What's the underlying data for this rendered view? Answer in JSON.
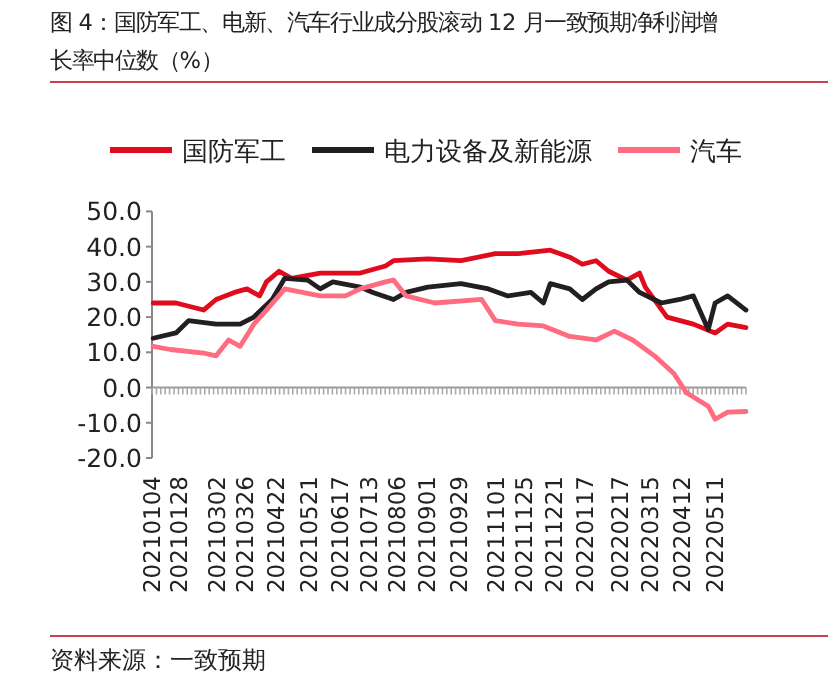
{
  "chart_data": {
    "type": "line",
    "title": "图 4：国防军工、电新、汽车行业成分股滚动 12 月一致预期净利润增长率中位数（%）",
    "annotations": [
      "资料来源：一致预期"
    ],
    "legend": "top",
    "marker": "none",
    "line_style": "solid",
    "xlim": [
      "2021-01-04",
      "2022-06-07"
    ],
    "xticks": [
      {
        "value": "2021-01-04",
        "label": "20210104"
      },
      {
        "value": "2021-01-28",
        "label": "20210128"
      },
      {
        "value": "2021-03-02",
        "label": "20210302"
      },
      {
        "value": "2021-03-26",
        "label": "20210326"
      },
      {
        "value": "2021-04-22",
        "label": "20210422"
      },
      {
        "value": "2021-05-21",
        "label": "20210521"
      },
      {
        "value": "2021-06-17",
        "label": "20210617"
      },
      {
        "value": "2021-07-13",
        "label": "20210713"
      },
      {
        "value": "2021-08-06",
        "label": "20210806"
      },
      {
        "value": "2021-09-01",
        "label": "20210901"
      },
      {
        "value": "2021-09-29",
        "label": "20210929"
      },
      {
        "value": "2021-11-01",
        "label": "20211101"
      },
      {
        "value": "2021-11-25",
        "label": "20211125"
      },
      {
        "value": "2021-12-21",
        "label": "20211221"
      },
      {
        "value": "2022-01-17",
        "label": "20220117"
      },
      {
        "value": "2022-02-17",
        "label": "20220217"
      },
      {
        "value": "2022-03-15",
        "label": "20220315"
      },
      {
        "value": "2022-04-12",
        "label": "20220412"
      },
      {
        "value": "2022-05-11",
        "label": "20220511"
      }
    ],
    "ylim": [
      -20,
      50
    ],
    "yticks": [
      {
        "value": -20,
        "label": "-20.0"
      },
      {
        "value": -10,
        "label": "-10.0"
      },
      {
        "value": 0,
        "label": "0.0"
      },
      {
        "value": 10,
        "label": "10.0"
      },
      {
        "value": 20,
        "label": "20.0"
      },
      {
        "value": 30,
        "label": "30.0"
      },
      {
        "value": 40,
        "label": "40.0"
      },
      {
        "value": 50,
        "label": "50.0"
      }
    ],
    "series": [
      {
        "name": "国防军工",
        "color": "#e00b1c",
        "x": [
          "2021-01-05",
          "2021-01-25",
          "2021-02-18",
          "2021-03-01",
          "2021-03-17",
          "2021-03-28",
          "2021-04-08",
          "2021-04-14",
          "2021-04-25",
          "2021-05-06",
          "2021-05-31",
          "2021-07-05",
          "2021-07-27",
          "2021-08-03",
          "2021-09-02",
          "2021-10-01",
          "2021-10-31",
          "2021-11-20",
          "2021-12-18",
          "2022-01-04",
          "2022-01-15",
          "2022-01-27",
          "2022-02-07",
          "2022-02-23",
          "2022-03-06",
          "2022-03-11",
          "2022-03-30",
          "2022-04-22",
          "2022-05-11",
          "2022-05-22",
          "2022-06-07"
        ],
        "values": [
          24,
          24,
          22,
          25,
          27,
          28,
          26,
          30,
          33,
          31,
          32.5,
          32.5,
          34.5,
          36,
          36.5,
          36,
          38,
          38,
          39,
          37,
          35,
          36,
          33,
          30.5,
          32.5,
          28.5,
          20,
          18,
          15.5,
          18,
          17
        ]
      },
      {
        "name": "电力设备及新能源",
        "color": "#231f20",
        "x": [
          "2021-01-05",
          "2021-01-25",
          "2021-02-05",
          "2021-03-01",
          "2021-03-22",
          "2021-04-03",
          "2021-04-19",
          "2021-04-30",
          "2021-05-20",
          "2021-05-31",
          "2021-06-11",
          "2021-07-05",
          "2021-07-16",
          "2021-08-03",
          "2021-08-14",
          "2021-09-02",
          "2021-10-01",
          "2021-10-25",
          "2021-11-11",
          "2021-12-01",
          "2021-12-12",
          "2021-12-18",
          "2022-01-04",
          "2022-01-15",
          "2022-01-27",
          "2022-02-07",
          "2022-02-23",
          "2022-03-06",
          "2022-03-25",
          "2022-04-10",
          "2022-04-22",
          "2022-05-05",
          "2022-05-11",
          "2022-05-22",
          "2022-06-07"
        ],
        "values": [
          14,
          15.5,
          19,
          18,
          18,
          20,
          25,
          31,
          30.5,
          28,
          30,
          28.5,
          27,
          25,
          27,
          28.5,
          29.5,
          28,
          26,
          27,
          24,
          29.5,
          28,
          25,
          28,
          30,
          30.5,
          27,
          24,
          25,
          26,
          16.5,
          24,
          26,
          22
        ]
      },
      {
        "name": "汽车",
        "color": "#ff6b7f",
        "x": [
          "2021-01-05",
          "2021-01-20",
          "2021-02-18",
          "2021-03-01",
          "2021-03-12",
          "2021-03-22",
          "2021-04-03",
          "2021-04-14",
          "2021-04-30",
          "2021-05-31",
          "2021-06-22",
          "2021-07-05",
          "2021-07-27",
          "2021-08-03",
          "2021-08-14",
          "2021-09-08",
          "2021-10-19",
          "2021-10-31",
          "2021-11-20",
          "2021-12-12",
          "2022-01-04",
          "2022-01-27",
          "2022-02-12",
          "2022-02-28",
          "2022-03-19",
          "2022-04-05",
          "2022-04-16",
          "2022-05-05",
          "2022-05-11",
          "2022-05-22",
          "2022-06-07"
        ],
        "values": [
          11.7,
          10.8,
          9.8,
          9,
          13.5,
          11.7,
          18,
          22,
          28,
          26,
          26,
          28,
          30,
          30.5,
          26,
          24,
          25,
          19,
          18,
          17.5,
          14.5,
          13.5,
          16,
          13.5,
          9,
          4,
          -1.5,
          -5.3,
          -9,
          -7,
          -6.8
        ]
      }
    ]
  }
}
